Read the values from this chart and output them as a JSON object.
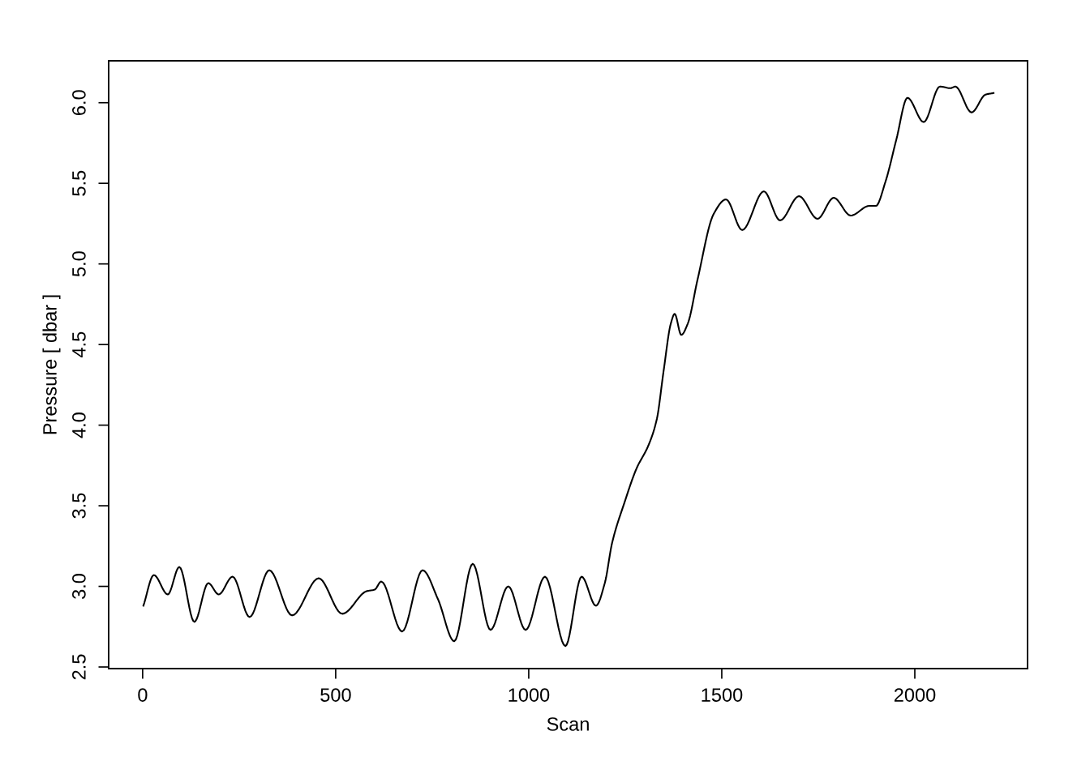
{
  "chart_data": {
    "type": "line",
    "xlabel": "Scan",
    "ylabel": "Pressure [ dbar ]",
    "xlim": [
      -88,
      2292
    ],
    "ylim": [
      2.49,
      6.26
    ],
    "xticks": [
      0,
      500,
      1000,
      1500,
      2000
    ],
    "yticks": [
      {
        "value": 2.5,
        "label": "2.5"
      },
      {
        "value": 3.0,
        "label": "3.0"
      },
      {
        "value": 3.5,
        "label": "3.5"
      },
      {
        "value": 4.0,
        "label": "4.0"
      },
      {
        "value": 4.5,
        "label": "4.5"
      },
      {
        "value": 5.0,
        "label": "5.0"
      },
      {
        "value": 5.5,
        "label": "5.5"
      },
      {
        "value": 6.0,
        "label": "6.0"
      }
    ],
    "marker": "none",
    "line_style": "solid",
    "series": [
      {
        "color": "#000000",
        "x": [
          2,
          29,
          65,
          95,
          134,
          170,
          197,
          233,
          277,
          328,
          387,
          456,
          517,
          580,
          601,
          618,
          672,
          725,
          765,
          807,
          855,
          901,
          947,
          992,
          1042,
          1095,
          1137,
          1174,
          1197,
          1216,
          1248,
          1279,
          1311,
          1332,
          1349,
          1368,
          1378,
          1395,
          1412,
          1437,
          1479,
          1511,
          1553,
          1609,
          1651,
          1700,
          1748,
          1790,
          1834,
          1882,
          1899,
          1924,
          1952,
          1981,
          2023,
          2065,
          2092,
          2105,
          2147,
          2183,
          2204
        ],
        "values": [
          2.88,
          3.07,
          2.95,
          3.12,
          2.78,
          3.02,
          2.95,
          3.06,
          2.81,
          3.1,
          2.82,
          3.05,
          2.83,
          2.97,
          2.98,
          3.03,
          2.72,
          3.1,
          2.92,
          2.66,
          3.14,
          2.73,
          3.0,
          2.73,
          3.06,
          2.63,
          3.06,
          2.88,
          3.02,
          3.27,
          3.52,
          3.73,
          3.88,
          4.04,
          4.33,
          4.63,
          4.69,
          4.56,
          4.63,
          4.9,
          5.31,
          5.4,
          5.21,
          5.45,
          5.27,
          5.42,
          5.28,
          5.41,
          5.3,
          5.36,
          5.36,
          5.51,
          5.77,
          6.03,
          5.88,
          6.1,
          6.09,
          6.1,
          5.94,
          6.05,
          6.06
        ]
      }
    ]
  }
}
